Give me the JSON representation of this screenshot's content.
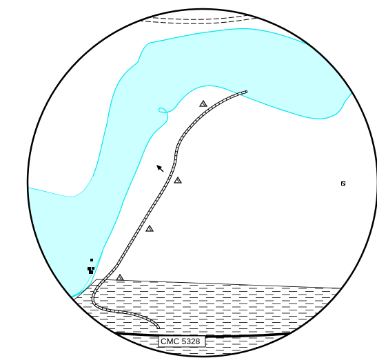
{
  "map": {
    "road_label": "CMC 5328",
    "colors": {
      "water": "#ccffff",
      "water_outline": "#00e5f0",
      "ink": "#000000",
      "background": "#ffffff"
    },
    "features": {
      "symbols": [
        "triangle-marker",
        "arrow-marker",
        "building-cluster",
        "square-marker"
      ],
      "areas": [
        "lake",
        "marsh-hatched"
      ],
      "lines": [
        "railway",
        "primary-road",
        "dashed-track"
      ]
    }
  }
}
